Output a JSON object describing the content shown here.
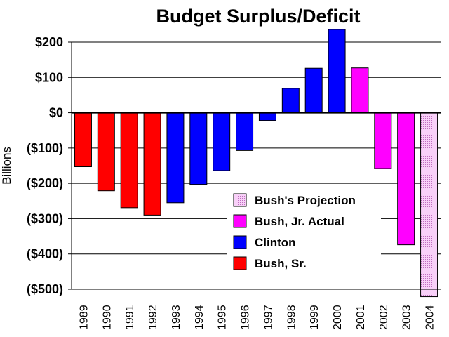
{
  "chart_data": {
    "type": "bar",
    "title": "Budget Surplus/Deficit",
    "ylabel": "Billions",
    "xlabel": "",
    "ylim": [
      -500,
      200
    ],
    "ytick_values": [
      200,
      100,
      0,
      -100,
      -200,
      -300,
      -400,
      -500
    ],
    "ytick_labels": [
      "$200",
      "$100",
      "$0",
      "($100)",
      "($200)",
      "($300)",
      "($400)",
      "($500)"
    ],
    "grid": "horizontal",
    "legend_position": "bottom-center",
    "categories": [
      "1989",
      "1990",
      "1991",
      "1992",
      "1993",
      "1994",
      "1995",
      "1996",
      "1997",
      "1998",
      "1999",
      "2000",
      "2001",
      "2002",
      "2003",
      "2004"
    ],
    "values": [
      -153,
      -221,
      -269,
      -290,
      -255,
      -203,
      -164,
      -107,
      -22,
      69,
      126,
      236,
      127,
      -158,
      -374,
      -521
    ],
    "bar_series": [
      "Bush, Sr.",
      "Bush, Sr.",
      "Bush, Sr.",
      "Bush, Sr.",
      "Clinton",
      "Clinton",
      "Clinton",
      "Clinton",
      "Clinton",
      "Clinton",
      "Clinton",
      "Clinton",
      "Bush, Jr. Actual",
      "Bush, Jr. Actual",
      "Bush, Jr. Actual",
      "Bush's Projection"
    ],
    "series": [
      {
        "name": "Bush's Projection",
        "color": "#f4b6f4",
        "pattern": "dotted"
      },
      {
        "name": "Bush, Jr. Actual",
        "color": "#ff00ff"
      },
      {
        "name": "Clinton",
        "color": "#0000ff"
      },
      {
        "name": "Bush, Sr.",
        "color": "#ff0000"
      }
    ]
  }
}
